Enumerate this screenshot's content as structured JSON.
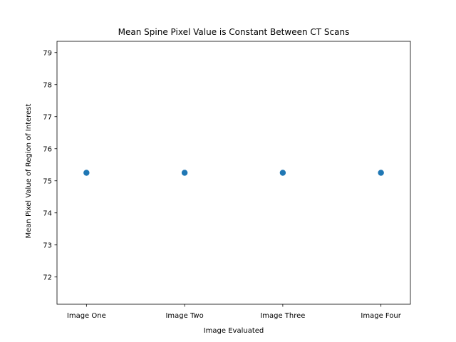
{
  "chart_data": {
    "type": "scatter",
    "title": "Mean Spine Pixel Value is Constant Between CT Scans",
    "xlabel": "Image Evaluated",
    "ylabel": "Mean Pixel Value of Region of Interest",
    "categories": [
      "Image One",
      "Image Two",
      "Image Three",
      "Image Four"
    ],
    "values": [
      75.25,
      75.25,
      75.25,
      75.25
    ],
    "ylim": [
      71.15,
      79.35
    ],
    "yticks": [
      72,
      73,
      74,
      75,
      76,
      77,
      78,
      79
    ],
    "grid": false,
    "marker_color": "#1f77b4"
  }
}
